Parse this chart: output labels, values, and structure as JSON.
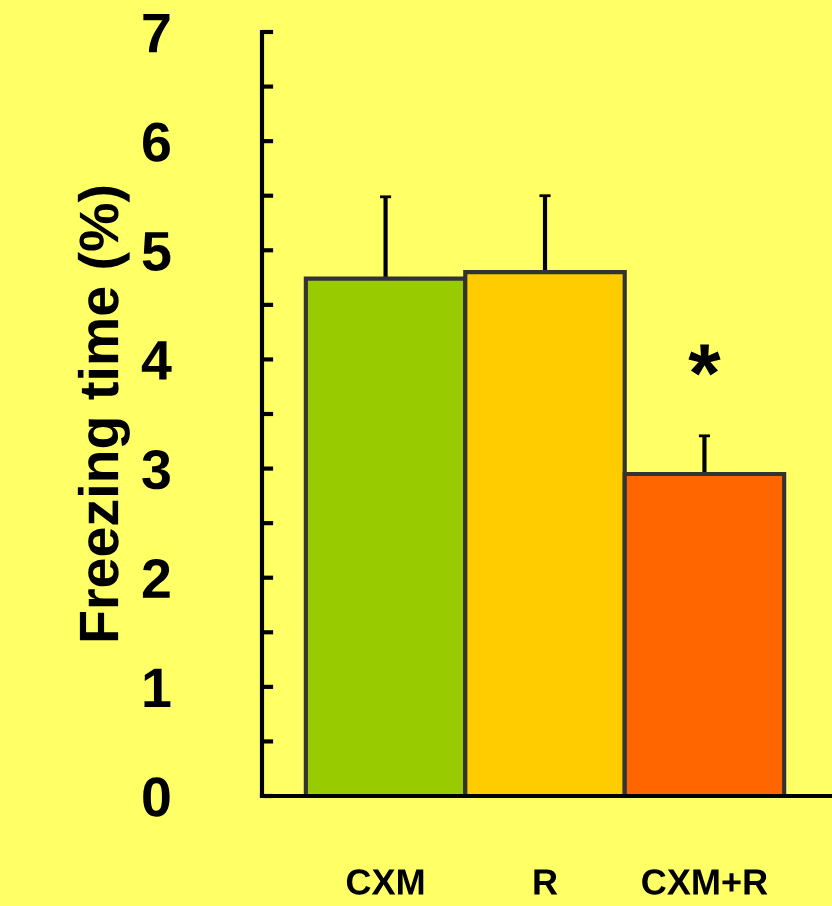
{
  "chart_data": {
    "type": "bar",
    "ylabel": "Freezing time (%)",
    "categories": [
      "CXM",
      "R",
      "CXM+R"
    ],
    "values": [
      4.74,
      4.8,
      2.95
    ],
    "colors": [
      "#99cc00",
      "#ffcc00",
      "#ff6600"
    ],
    "errors": [
      0.75,
      0.7,
      0.35
    ],
    "ylim": [
      0,
      7
    ],
    "yticks": [
      0,
      {
        "value": 0.5,
        "label": null
      },
      1,
      {
        "value": 1.5,
        "label": null
      },
      2,
      {
        "value": 2.5,
        "label": null
      },
      3,
      {
        "value": 3.5,
        "label": null
      },
      4,
      {
        "value": 4.5,
        "label": null
      },
      5,
      {
        "value": 5.5,
        "label": null
      },
      6,
      {
        "value": 6.5,
        "label": null
      },
      7
    ],
    "annotations": [
      "*"
    ],
    "grid": false,
    "legend": false
  }
}
